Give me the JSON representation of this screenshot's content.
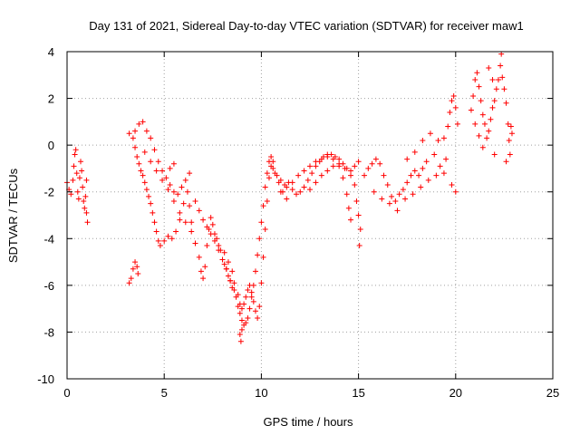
{
  "chart_data": {
    "type": "scatter",
    "title": "Day 131 of 2021, Sidereal Day-to-day VTEC variation (SDTVAR) for receiver maw1",
    "xlabel": "GPS time / hours",
    "ylabel": "SDTVAR / TECUs",
    "xlim": [
      0,
      25
    ],
    "ylim": [
      -10,
      4
    ],
    "xticks": [
      0,
      5,
      10,
      15,
      20,
      25
    ],
    "yticks": [
      -10,
      -8,
      -6,
      -4,
      -2,
      0,
      2,
      4
    ],
    "grid": true,
    "marker": "+",
    "color": "#ff0000",
    "series": [
      {
        "name": "SDTVAR",
        "points": [
          [
            0.0,
            -1.6
          ],
          [
            0.1,
            -1.9
          ],
          [
            0.2,
            -2.1
          ],
          [
            0.3,
            -1.5
          ],
          [
            0.35,
            -0.9
          ],
          [
            0.4,
            -0.4
          ],
          [
            0.45,
            -0.2
          ],
          [
            0.5,
            -1.2
          ],
          [
            0.55,
            -2.0
          ],
          [
            0.6,
            -2.3
          ],
          [
            0.65,
            -1.4
          ],
          [
            0.7,
            -0.7
          ],
          [
            0.75,
            -1.1
          ],
          [
            0.8,
            -1.8
          ],
          [
            0.85,
            -2.4
          ],
          [
            0.9,
            -2.7
          ],
          [
            0.95,
            -2.2
          ],
          [
            1.0,
            -2.9
          ],
          [
            1.05,
            -3.3
          ],
          [
            1.0,
            -1.5
          ],
          [
            3.2,
            -5.9
          ],
          [
            3.3,
            -5.7
          ],
          [
            3.4,
            -5.3
          ],
          [
            3.5,
            -5.0
          ],
          [
            3.6,
            -5.2
          ],
          [
            3.65,
            -5.5
          ],
          [
            3.2,
            0.5
          ],
          [
            3.4,
            0.3
          ],
          [
            3.5,
            -0.1
          ],
          [
            3.6,
            -0.5
          ],
          [
            3.7,
            -0.8
          ],
          [
            3.8,
            -1.1
          ],
          [
            3.9,
            -1.3
          ],
          [
            4.0,
            -1.6
          ],
          [
            4.1,
            -1.9
          ],
          [
            4.2,
            -2.2
          ],
          [
            4.3,
            -2.5
          ],
          [
            4.4,
            -2.9
          ],
          [
            4.5,
            -3.3
          ],
          [
            4.6,
            -3.7
          ],
          [
            4.7,
            -4.1
          ],
          [
            4.8,
            -4.3
          ],
          [
            5.0,
            -4.1
          ],
          [
            5.2,
            -3.9
          ],
          [
            5.4,
            -4.0
          ],
          [
            5.6,
            -3.7
          ],
          [
            5.8,
            -3.2
          ],
          [
            6.0,
            -2.5
          ],
          [
            6.2,
            -2.0
          ],
          [
            6.3,
            -2.6
          ],
          [
            6.4,
            -3.3
          ],
          [
            3.5,
            0.6
          ],
          [
            3.7,
            0.9
          ],
          [
            3.9,
            1.0
          ],
          [
            4.1,
            0.6
          ],
          [
            4.3,
            0.3
          ],
          [
            4.5,
            -0.2
          ],
          [
            4.7,
            -0.7
          ],
          [
            4.9,
            -1.1
          ],
          [
            5.1,
            -1.4
          ],
          [
            5.3,
            -1.7
          ],
          [
            5.5,
            -2.0
          ],
          [
            5.7,
            -2.1
          ],
          [
            5.9,
            -1.8
          ],
          [
            6.1,
            -1.5
          ],
          [
            6.3,
            -1.2
          ],
          [
            5.3,
            -1.0
          ],
          [
            5.5,
            -0.8
          ],
          [
            4.0,
            -0.3
          ],
          [
            4.3,
            -0.7
          ],
          [
            4.6,
            -1.1
          ],
          [
            4.9,
            -1.5
          ],
          [
            5.2,
            -1.9
          ],
          [
            5.5,
            -2.4
          ],
          [
            5.8,
            -2.9
          ],
          [
            6.1,
            -3.3
          ],
          [
            6.4,
            -3.7
          ],
          [
            6.6,
            -4.2
          ],
          [
            6.8,
            -4.8
          ],
          [
            6.9,
            -5.4
          ],
          [
            7.0,
            -5.7
          ],
          [
            7.1,
            -5.2
          ],
          [
            7.2,
            -4.3
          ],
          [
            7.3,
            -3.6
          ],
          [
            7.4,
            -3.1
          ],
          [
            7.5,
            -3.4
          ],
          [
            7.6,
            -3.8
          ],
          [
            7.7,
            -4.0
          ],
          [
            7.8,
            -4.3
          ],
          [
            7.9,
            -4.5
          ],
          [
            8.0,
            -4.9
          ],
          [
            8.1,
            -5.1
          ],
          [
            8.2,
            -5.3
          ],
          [
            8.3,
            -5.6
          ],
          [
            8.4,
            -5.8
          ],
          [
            8.5,
            -6.1
          ],
          [
            6.6,
            -2.4
          ],
          [
            6.8,
            -2.8
          ],
          [
            7.0,
            -3.2
          ],
          [
            7.2,
            -3.5
          ],
          [
            7.4,
            -3.8
          ],
          [
            7.6,
            -4.1
          ],
          [
            7.8,
            -4.5
          ],
          [
            8.0,
            -4.9
          ],
          [
            8.2,
            -5.3
          ],
          [
            8.4,
            -5.8
          ],
          [
            8.6,
            -6.2
          ],
          [
            8.7,
            -6.5
          ],
          [
            8.8,
            -6.9
          ],
          [
            8.9,
            -7.2
          ],
          [
            9.0,
            -7.5
          ],
          [
            9.1,
            -7.7
          ],
          [
            9.2,
            -7.6
          ],
          [
            9.3,
            -7.4
          ],
          [
            9.4,
            -7.0
          ],
          [
            9.5,
            -6.5
          ],
          [
            9.6,
            -6.0
          ],
          [
            9.7,
            -5.4
          ],
          [
            9.8,
            -4.7
          ],
          [
            9.9,
            -4.0
          ],
          [
            10.0,
            -3.3
          ],
          [
            10.1,
            -2.6
          ],
          [
            10.2,
            -1.8
          ],
          [
            10.3,
            -1.2
          ],
          [
            10.4,
            -0.7
          ],
          [
            10.5,
            -0.5
          ],
          [
            10.6,
            -0.7
          ],
          [
            8.1,
            -4.6
          ],
          [
            8.3,
            -5.0
          ],
          [
            8.5,
            -5.4
          ],
          [
            8.6,
            -5.9
          ],
          [
            8.8,
            -6.4
          ],
          [
            8.9,
            -6.8
          ],
          [
            9.0,
            -7.0
          ],
          [
            9.1,
            -6.8
          ],
          [
            9.2,
            -6.5
          ],
          [
            9.3,
            -6.2
          ],
          [
            9.4,
            -6.0
          ],
          [
            9.5,
            -6.3
          ],
          [
            9.6,
            -6.7
          ],
          [
            9.7,
            -7.1
          ],
          [
            9.8,
            -7.4
          ],
          [
            9.9,
            -6.9
          ],
          [
            10.0,
            -5.9
          ],
          [
            10.1,
            -4.8
          ],
          [
            10.2,
            -3.6
          ],
          [
            10.3,
            -2.4
          ],
          [
            10.4,
            -1.4
          ],
          [
            10.5,
            -0.9
          ],
          [
            10.7,
            -1.2
          ],
          [
            10.9,
            -1.6
          ],
          [
            11.1,
            -2.0
          ],
          [
            11.3,
            -2.3
          ],
          [
            8.9,
            -8.1
          ],
          [
            8.95,
            -8.4
          ],
          [
            9.0,
            -7.9
          ],
          [
            10.6,
            -1.0
          ],
          [
            10.8,
            -1.3
          ],
          [
            11.0,
            -1.5
          ],
          [
            11.2,
            -1.7
          ],
          [
            11.4,
            -1.6
          ],
          [
            11.6,
            -1.9
          ],
          [
            11.8,
            -2.1
          ],
          [
            12.0,
            -2.0
          ],
          [
            12.2,
            -1.8
          ],
          [
            12.4,
            -1.5
          ],
          [
            12.6,
            -1.2
          ],
          [
            12.8,
            -0.9
          ],
          [
            13.0,
            -0.7
          ],
          [
            13.2,
            -0.5
          ],
          [
            13.4,
            -0.4
          ],
          [
            13.6,
            -0.4
          ],
          [
            13.8,
            -0.5
          ],
          [
            14.0,
            -0.6
          ],
          [
            14.2,
            -0.8
          ],
          [
            14.4,
            -1.0
          ],
          [
            14.6,
            -1.1
          ],
          [
            14.8,
            -0.9
          ],
          [
            15.0,
            -0.7
          ],
          [
            11.0,
            -2.0
          ],
          [
            11.3,
            -1.8
          ],
          [
            11.6,
            -1.6
          ],
          [
            11.9,
            -1.3
          ],
          [
            12.2,
            -1.1
          ],
          [
            12.5,
            -0.9
          ],
          [
            12.8,
            -0.7
          ],
          [
            13.1,
            -0.6
          ],
          [
            13.4,
            -0.5
          ],
          [
            13.7,
            -0.6
          ],
          [
            14.0,
            -0.9
          ],
          [
            14.2,
            -1.4
          ],
          [
            14.4,
            -2.1
          ],
          [
            14.5,
            -2.7
          ],
          [
            14.6,
            -3.2
          ],
          [
            12.5,
            -1.9
          ],
          [
            12.8,
            -1.6
          ],
          [
            13.1,
            -1.3
          ],
          [
            13.4,
            -1.1
          ],
          [
            13.7,
            -0.9
          ],
          [
            14.0,
            -0.8
          ],
          [
            14.3,
            -1.0
          ],
          [
            14.6,
            -1.3
          ],
          [
            14.8,
            -1.7
          ],
          [
            14.9,
            -2.4
          ],
          [
            15.0,
            -3.0
          ],
          [
            15.1,
            -3.6
          ],
          [
            15.05,
            -4.3
          ],
          [
            15.3,
            -1.3
          ],
          [
            15.5,
            -1.0
          ],
          [
            15.7,
            -0.8
          ],
          [
            15.9,
            -0.6
          ],
          [
            16.1,
            -0.8
          ],
          [
            16.3,
            -1.3
          ],
          [
            16.5,
            -1.7
          ],
          [
            16.7,
            -2.2
          ],
          [
            16.9,
            -2.4
          ],
          [
            17.1,
            -2.1
          ],
          [
            17.3,
            -1.9
          ],
          [
            17.5,
            -1.6
          ],
          [
            17.7,
            -1.3
          ],
          [
            17.9,
            -1.1
          ],
          [
            18.1,
            -1.3
          ],
          [
            18.3,
            -1.0
          ],
          [
            18.5,
            -0.7
          ],
          [
            15.8,
            -2.0
          ],
          [
            16.2,
            -2.3
          ],
          [
            16.6,
            -2.5
          ],
          [
            17.0,
            -2.8
          ],
          [
            17.4,
            -2.3
          ],
          [
            17.8,
            -2.1
          ],
          [
            18.2,
            -1.8
          ],
          [
            18.6,
            -1.5
          ],
          [
            19.0,
            -1.3
          ],
          [
            19.4,
            -1.2
          ],
          [
            19.8,
            -1.7
          ],
          [
            20.0,
            -2.0
          ],
          [
            17.5,
            -0.6
          ],
          [
            17.9,
            -0.3
          ],
          [
            18.3,
            0.2
          ],
          [
            18.7,
            0.5
          ],
          [
            19.1,
            0.2
          ],
          [
            19.4,
            0.3
          ],
          [
            19.6,
            0.8
          ],
          [
            19.7,
            1.4
          ],
          [
            19.8,
            1.9
          ],
          [
            19.9,
            2.1
          ],
          [
            20.0,
            1.6
          ],
          [
            20.1,
            0.9
          ],
          [
            19.5,
            -0.6
          ],
          [
            19.2,
            -0.9
          ],
          [
            18.9,
            -0.4
          ],
          [
            20.8,
            1.5
          ],
          [
            20.9,
            2.1
          ],
          [
            21.0,
            2.8
          ],
          [
            21.1,
            3.1
          ],
          [
            21.2,
            2.5
          ],
          [
            21.3,
            1.9
          ],
          [
            21.4,
            1.3
          ],
          [
            21.5,
            0.9
          ],
          [
            21.6,
            0.3
          ],
          [
            21.7,
            0.6
          ],
          [
            21.8,
            1.1
          ],
          [
            21.9,
            1.6
          ],
          [
            22.0,
            1.9
          ],
          [
            22.1,
            2.4
          ],
          [
            22.2,
            2.8
          ],
          [
            22.3,
            3.4
          ],
          [
            22.35,
            3.9
          ],
          [
            22.4,
            2.9
          ],
          [
            22.5,
            2.4
          ],
          [
            22.6,
            1.8
          ],
          [
            22.7,
            0.9
          ],
          [
            22.75,
            0.2
          ],
          [
            22.8,
            -0.4
          ],
          [
            22.85,
            0.8
          ],
          [
            22.9,
            0.5
          ],
          [
            22.6,
            -0.7
          ],
          [
            21.0,
            0.9
          ],
          [
            21.2,
            0.4
          ],
          [
            21.4,
            -0.1
          ],
          [
            22.0,
            -0.4
          ],
          [
            21.7,
            3.3
          ],
          [
            21.9,
            2.8
          ]
        ]
      }
    ]
  }
}
